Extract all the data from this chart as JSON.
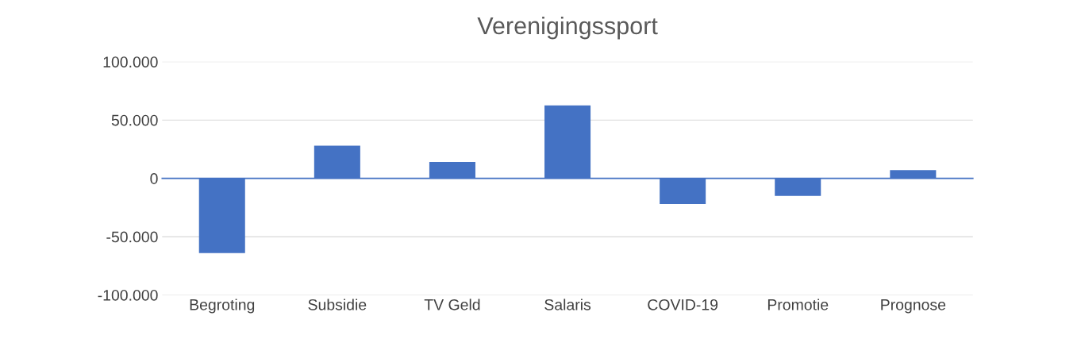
{
  "chart_data": {
    "type": "bar",
    "title": "Verenigingssport",
    "categories": [
      "Begroting",
      "Subsidie",
      "TV Geld",
      "Salaris",
      "COVID-19",
      "Promotie",
      "Prognose"
    ],
    "values": [
      -64000,
      28000,
      14000,
      62500,
      -22000,
      -15000,
      7000
    ],
    "color": "#4472c4",
    "ylim": [
      -100000,
      100000
    ],
    "yticks": [
      {
        "value": -100000,
        "label": "-100.000"
      },
      {
        "value": -50000,
        "label": "-50.000"
      },
      0,
      {
        "value": 50000,
        "label": "50.000"
      },
      {
        "value": 100000,
        "label": "100.000"
      }
    ],
    "grid": "y",
    "ref_lines": [
      {
        "axis": "y",
        "value": 0,
        "color": "#4472c4"
      }
    ]
  }
}
